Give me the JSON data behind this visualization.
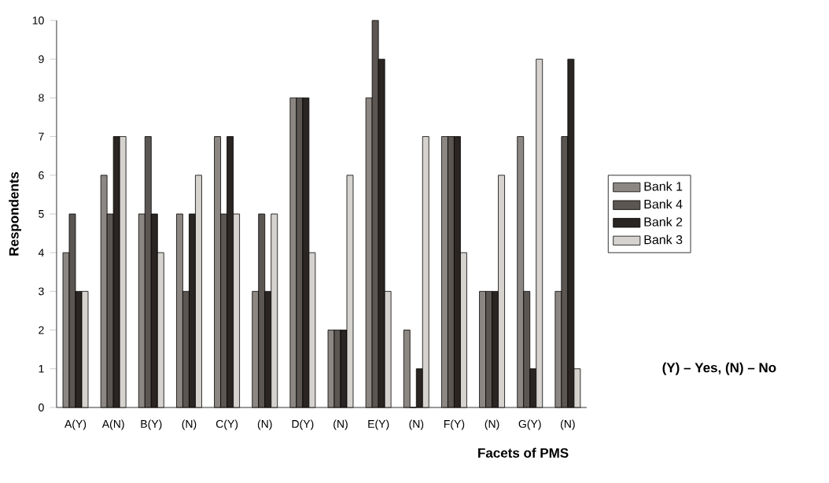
{
  "chart_data": {
    "type": "bar",
    "xlabel": "Facets of PMS",
    "ylabel": "Respondents",
    "categories": [
      "A(Y)",
      "A(N)",
      "B(Y)",
      "(N)",
      "C(Y)",
      "(N)",
      "D(Y)",
      "(N)",
      "E(Y)",
      "(N)",
      "F(Y)",
      "(N)",
      "G(Y)",
      "(N)"
    ],
    "series": [
      {
        "name": "Bank 1",
        "color": "#8c8782",
        "values": [
          4,
          6,
          5,
          5,
          7,
          3,
          8,
          2,
          8,
          2,
          7,
          3,
          7,
          3
        ]
      },
      {
        "name": "Bank 4",
        "color": "#5c5652",
        "values": [
          5,
          5,
          7,
          3,
          5,
          5,
          8,
          2,
          10,
          0,
          7,
          3,
          3,
          7
        ]
      },
      {
        "name": "Bank 2",
        "color": "#2a2522",
        "values": [
          3,
          7,
          5,
          5,
          7,
          3,
          8,
          2,
          9,
          1,
          7,
          3,
          1,
          9
        ]
      },
      {
        "name": "Bank 3",
        "color": "#d6d2ce",
        "values": [
          3,
          7,
          4,
          6,
          5,
          5,
          4,
          6,
          3,
          7,
          4,
          6,
          9,
          1
        ]
      }
    ],
    "ylim": [
      0,
      10
    ],
    "yticks": [
      0,
      1,
      2,
      3,
      4,
      5,
      6,
      7,
      8,
      9,
      10
    ],
    "legend": "right",
    "annotations": [
      "(Y) – Yes, (N) – No"
    ]
  }
}
